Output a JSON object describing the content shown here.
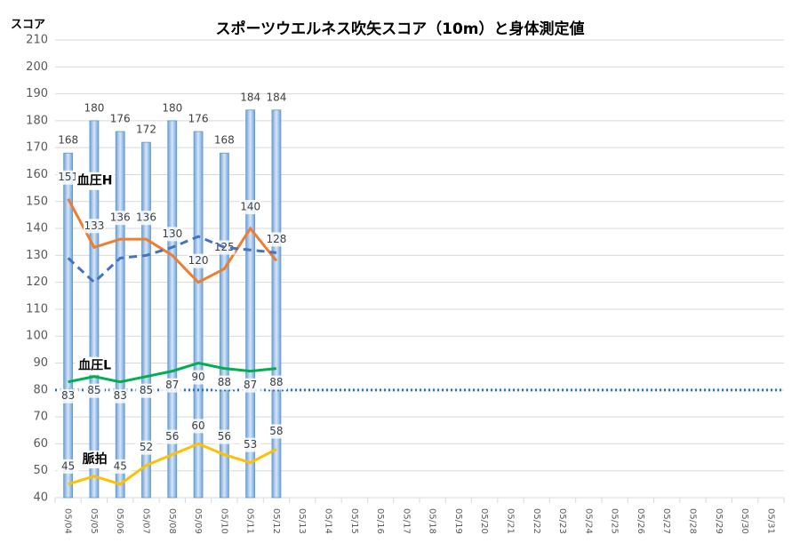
{
  "chart_data": {
    "type": "bar",
    "title": "スポーツウエルネス吹矢スコア（10m）と身体測定値",
    "y_label": "スコア",
    "categories": [
      "05/04",
      "05/05",
      "05/06",
      "05/07",
      "05/08",
      "05/09",
      "05/10",
      "05/11",
      "05/12",
      "05/13",
      "05/14",
      "05/15",
      "05/16",
      "05/17",
      "05/18",
      "05/19",
      "05/20",
      "05/21",
      "05/22",
      "05/23",
      "05/24",
      "05/25",
      "05/26",
      "05/27",
      "05/28",
      "05/29",
      "05/30",
      "05/31"
    ],
    "values": [
      168,
      180,
      176,
      172,
      180,
      176,
      168,
      184,
      184,
      null,
      null,
      null,
      null,
      null,
      null,
      null,
      null,
      null,
      null,
      null,
      null,
      null,
      null,
      null,
      null,
      null,
      null,
      null
    ],
    "color": "#9dc3e6",
    "lines": [
      {
        "name": "血圧H",
        "color": "#ed7d31",
        "values": [
          151,
          133,
          136,
          136,
          130,
          120,
          125,
          140,
          128,
          null,
          null,
          null,
          null,
          null,
          null,
          null,
          null,
          null,
          null,
          null,
          null,
          null,
          null,
          null,
          null,
          null,
          null,
          null
        ]
      },
      {
        "color": "#4472c4",
        "dashed": true,
        "values": [
          129,
          120,
          129,
          130,
          133,
          137,
          133,
          132,
          131,
          null,
          null,
          null,
          null,
          null,
          null,
          null,
          null,
          null,
          null,
          null,
          null,
          null,
          null,
          null,
          null,
          null,
          null,
          null
        ]
      },
      {
        "name": "血圧L",
        "color": "#00b050",
        "values": [
          83,
          85,
          83,
          85,
          87,
          90,
          88,
          87,
          88,
          null,
          null,
          null,
          null,
          null,
          null,
          null,
          null,
          null,
          null,
          null,
          null,
          null,
          null,
          null,
          null,
          null,
          null,
          null
        ]
      },
      {
        "name": "脈拍",
        "color": "#ffc000",
        "values": [
          45,
          48,
          45,
          52,
          56,
          60,
          56,
          53,
          58,
          null,
          null,
          null,
          null,
          null,
          null,
          null,
          null,
          null,
          null,
          null,
          null,
          null,
          null,
          null,
          null,
          null,
          null,
          null
        ]
      }
    ],
    "reference_line": 80,
    "reference_color": "#2e75b6",
    "ylim": [
      40,
      210
    ],
    "yticks": [
      40,
      50,
      60,
      70,
      80,
      90,
      100,
      110,
      120,
      130,
      140,
      150,
      160,
      170,
      180,
      190,
      200,
      210
    ],
    "grid": true
  }
}
